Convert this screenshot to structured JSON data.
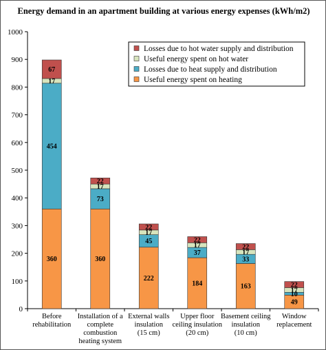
{
  "chart_data": {
    "type": "bar",
    "stacked": true,
    "title": "Energy demand in an apartment building at various energy expenses (kWh/m2)",
    "xlabel": "",
    "ylabel": "",
    "ylim": [
      0,
      1000
    ],
    "yticks": [
      0,
      100,
      200,
      300,
      400,
      500,
      600,
      700,
      800,
      900,
      1000
    ],
    "grid": false,
    "legend_position": "top-right",
    "categories": [
      [
        "Before",
        "rehabilitation"
      ],
      [
        "Installation of a",
        "complete",
        "combustion",
        "heating system"
      ],
      [
        "External walls",
        "insulation",
        "(15 cm)"
      ],
      [
        "Upper floor",
        "ceiling insulation",
        "(20 cm)"
      ],
      [
        "Basement ceiling",
        "insulation",
        "(10 cm)"
      ],
      [
        "Window",
        "replacement"
      ]
    ],
    "series": [
      {
        "name": "Useful energy spent on heating",
        "color": "#F79646",
        "values": [
          360,
          360,
          222,
          184,
          163,
          49
        ],
        "labels": [
          "360",
          "360",
          "222",
          "184",
          "163",
          "49"
        ]
      },
      {
        "name": "Losses due to heat supply and distribution",
        "color": "#4BACC6",
        "values": [
          454,
          73,
          45,
          37,
          33,
          10
        ],
        "labels": [
          "454",
          "73",
          "45",
          "37",
          "33",
          "10"
        ]
      },
      {
        "name": "Useful energy spent on hot water",
        "color": "#D7E4BD",
        "values": [
          17,
          17,
          17,
          17,
          17,
          17
        ],
        "labels": [
          "17",
          "17",
          "17",
          "17",
          "17",
          "17"
        ]
      },
      {
        "name": "Losses due to hot water supply and distribution",
        "color": "#C0504D",
        "values": [
          67,
          22,
          22,
          22,
          22,
          22
        ],
        "labels": [
          "67",
          "22",
          "22",
          "22",
          "22",
          "22"
        ]
      }
    ]
  }
}
